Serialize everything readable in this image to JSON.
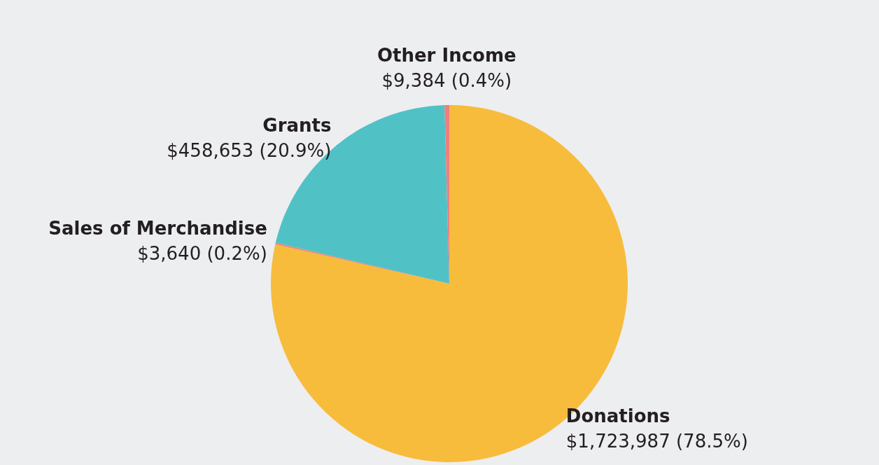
{
  "chart_data": {
    "type": "pie",
    "categories": [
      "Donations",
      "Sales of Merchandise",
      "Grants",
      "Other Income"
    ],
    "values": [
      1723987,
      3640,
      458653,
      9384
    ],
    "colors": [
      "#f7bc3c",
      "#f4866c",
      "#50c2c6",
      "#ef7f7f"
    ],
    "value_labels": [
      "$1,723,987 (78.5%)",
      "$3,640 (0.2%)",
      "$458,653 (20.9%)",
      "$9,384 (0.4%)"
    ]
  }
}
